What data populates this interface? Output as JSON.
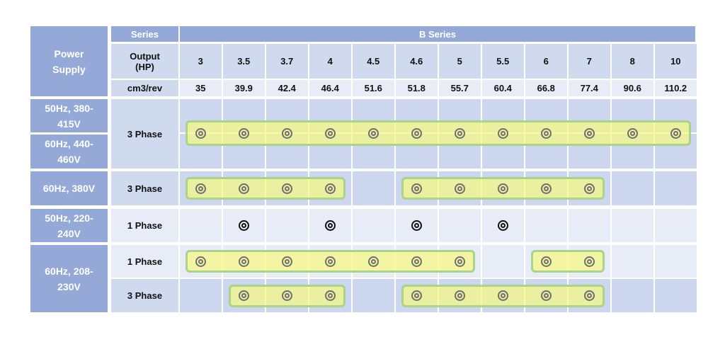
{
  "table": {
    "series_label": "Series",
    "series_name": "B Series",
    "power_supply_label": "Power Supply",
    "output_label": "Output (HP)",
    "displacement_label": "cm3/rev",
    "hp": [
      "3",
      "3.5",
      "3.7",
      "4",
      "4.5",
      "4.6",
      "5",
      "5.5",
      "6",
      "7",
      "8",
      "10"
    ],
    "cm3": [
      "35",
      "39.9",
      "42.4",
      "46.4",
      "51.6",
      "51.8",
      "55.7",
      "60.4",
      "66.8",
      "77.4",
      "90.6",
      "110.2"
    ],
    "supplies": [
      "50Hz, 380-415V",
      "60Hz, 440-460V",
      "60Hz, 380V",
      "50Hz, 220-240V",
      "60Hz, 208-230V"
    ],
    "rows": [
      {
        "phase": "3 Phase",
        "available": [
          1,
          1,
          1,
          1,
          1,
          1,
          1,
          1,
          1,
          1,
          1,
          1
        ]
      },
      {
        "phase": "3 Phase",
        "available": [
          1,
          1,
          1,
          1,
          0,
          1,
          1,
          1,
          1,
          1,
          0,
          0
        ]
      },
      {
        "phase": "1 Phase",
        "available": [
          0,
          1,
          0,
          1,
          0,
          1,
          0,
          1,
          0,
          0,
          0,
          0
        ]
      },
      {
        "phase": "1 Phase",
        "available": [
          1,
          1,
          1,
          1,
          1,
          1,
          1,
          0,
          1,
          1,
          0,
          0
        ]
      },
      {
        "phase": "3 Phase",
        "available": [
          0,
          1,
          1,
          1,
          0,
          1,
          1,
          1,
          1,
          1,
          0,
          0
        ]
      }
    ]
  },
  "colors": {
    "header_dark": "#95a9d8",
    "header_light": "#d0daee",
    "data_blue": "#ccd6ee",
    "data_light": "#e8ecf7",
    "highlight_band": "#f6f882",
    "highlight_border": "#a9d48a"
  },
  "icons": {
    "available_mark": "double-circle-icon"
  }
}
